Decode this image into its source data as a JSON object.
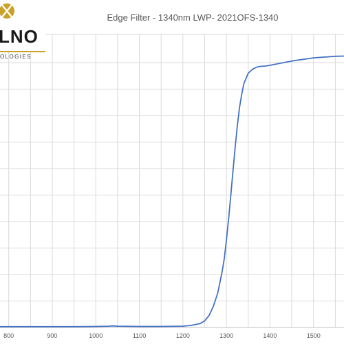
{
  "logo": {
    "text_large": "LNO",
    "text_small": "OLOGIES",
    "accent_color": "#c9a227"
  },
  "chart_data": {
    "type": "line",
    "title": "Edge Filter - 1340nm LWP- 2021OFS-1340",
    "xlabel": "",
    "ylabel": "",
    "xlim": [
      780,
      1600
    ],
    "ylim": [
      0,
      100
    ],
    "x_ticks": [
      "800",
      "900",
      "1000",
      "1100",
      "1200",
      "1300",
      "1400",
      "1500"
    ],
    "grid": true,
    "line_color": "#4472c4",
    "series": [
      {
        "x": [
          780,
          850,
          900,
          950,
          1000,
          1030,
          1040,
          1050,
          1100,
          1150,
          1200,
          1220,
          1240,
          1250,
          1260,
          1270,
          1280,
          1290,
          1295,
          1300,
          1305,
          1310,
          1315,
          1320,
          1325,
          1330,
          1335,
          1340,
          1345,
          1350,
          1360,
          1370,
          1380,
          1390,
          1400,
          1450,
          1500,
          1550,
          1600
        ],
        "y": [
          0.3,
          0.3,
          0.3,
          0.3,
          0.4,
          0.5,
          0.6,
          0.5,
          0.4,
          0.4,
          0.5,
          0.8,
          1.5,
          2.5,
          4.5,
          8,
          13,
          21,
          26,
          33,
          41,
          50,
          59,
          68,
          76,
          83,
          88,
          92,
          94,
          96,
          97.5,
          98.3,
          98.6,
          98.7,
          99,
          100.6,
          101.8,
          102.4,
          102.6
        ]
      }
    ]
  }
}
